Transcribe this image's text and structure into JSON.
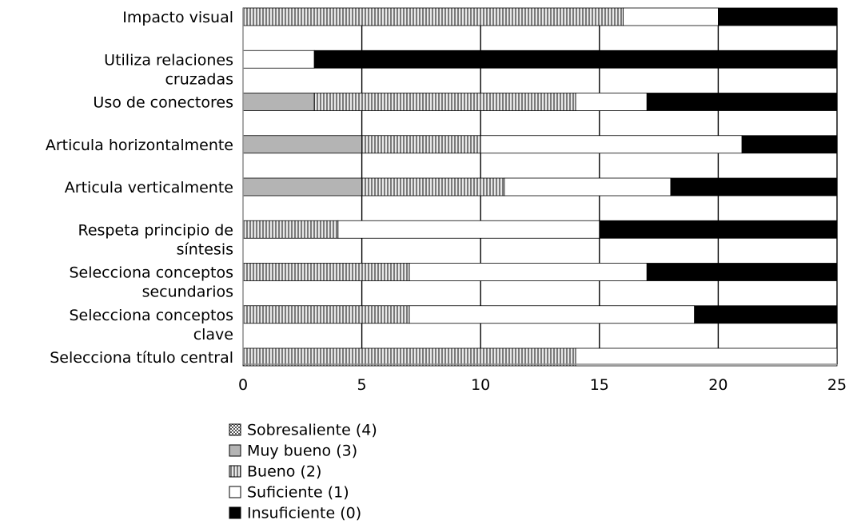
{
  "chart_data": {
    "type": "bar",
    "orientation": "horizontal",
    "stacked": true,
    "categories": [
      [
        "Impacto visual"
      ],
      [
        "Utiliza relaciones",
        "cruzadas"
      ],
      [
        "Uso de conectores"
      ],
      [
        "Articula horizontalmente"
      ],
      [
        "Articula verticalmente"
      ],
      [
        "Respeta principio de",
        "síntesis"
      ],
      [
        "Selecciona conceptos",
        "secundarios"
      ],
      [
        "Selecciona conceptos",
        "clave"
      ],
      [
        "Selecciona título central"
      ]
    ],
    "series": [
      {
        "name": "Sobresaliente (4)",
        "pattern": "dotted",
        "values": [
          0,
          0,
          0,
          0,
          0,
          0,
          0,
          0,
          0
        ]
      },
      {
        "name": "Muy bueno (3)",
        "pattern": "solid-gray",
        "values": [
          0,
          0,
          3,
          5,
          5,
          0,
          0,
          0,
          0
        ]
      },
      {
        "name": "Bueno (2)",
        "pattern": "vertical-stripes",
        "values": [
          16,
          0,
          11,
          5,
          6,
          4,
          7,
          7,
          14
        ]
      },
      {
        "name": "Suficiente (1)",
        "pattern": "white",
        "values": [
          4,
          3,
          3,
          11,
          7,
          11,
          10,
          12,
          11
        ]
      },
      {
        "name": "Insuficiente (0)",
        "pattern": "black",
        "values": [
          5,
          22,
          8,
          4,
          7,
          10,
          8,
          6,
          0
        ]
      }
    ],
    "xlim": [
      0,
      25
    ],
    "xticks": [
      "0",
      "5",
      "10",
      "15",
      "20",
      "25"
    ],
    "grid": true,
    "legend_position": "bottom",
    "colors": {
      "black": "#000000",
      "gray": "#b4b4b4",
      "stripe_dark": "#7a7a7a",
      "stripe_light": "#e8e8e8",
      "grid": "#000000",
      "axis": "#8c8c8c"
    }
  }
}
